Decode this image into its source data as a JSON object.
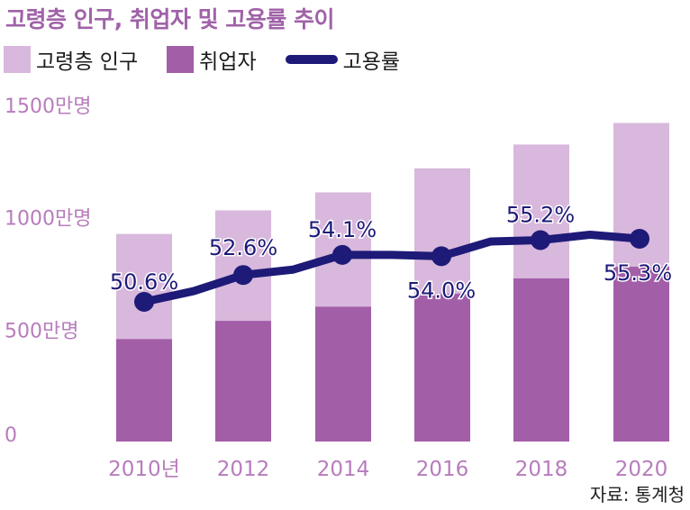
{
  "title": "고령층 인구, 취업자 및 고용률 추이",
  "legend": [
    {
      "label": "고령층 인구",
      "color": "#d8b8dc"
    },
    {
      "label": "취업자",
      "color": "#a35ea8"
    },
    {
      "label": "고용률",
      "color": "#1e1a78"
    }
  ],
  "source": "자료: 통계청",
  "chart_data": {
    "type": "bar",
    "categories": [
      "2010년",
      "2012",
      "2014",
      "2016",
      "2018",
      "2020"
    ],
    "y_tick_labels": [
      "0",
      "500만명",
      "1000만명",
      "1500만명"
    ],
    "y_ticks": [
      0,
      500,
      1000,
      1500
    ],
    "ylim": [
      0,
      1500
    ],
    "stacked": false,
    "series": [
      {
        "name": "고령층 인구",
        "values": [
          924,
          1029,
          1109,
          1216,
          1322,
          1418
        ],
        "color": "#d8b8dc"
      },
      {
        "name": "취업자",
        "values": [
          456,
          537,
          600,
          658,
          726,
          778
        ],
        "color": "#a35ea8"
      }
    ],
    "line_series": {
      "name": "고용률",
      "color": "#1e1a78",
      "x_positions": [
        2010,
        2011,
        2012,
        2013,
        2014,
        2015,
        2016,
        2017,
        2018,
        2019,
        2020
      ],
      "values": [
        50.6,
        51.4,
        52.6,
        53.0,
        54.1,
        54.1,
        54.0,
        55.1,
        55.2,
        55.6,
        55.3
      ],
      "marker_labels": [
        {
          "year": 2010,
          "value": 50.6,
          "label": "50.6%"
        },
        {
          "year": 2012,
          "value": 52.6,
          "label": "52.6%"
        },
        {
          "year": 2014,
          "value": 54.1,
          "label": "54.1%"
        },
        {
          "year": 2016,
          "value": 54.0,
          "label": "54.0%"
        },
        {
          "year": 2018,
          "value": 55.2,
          "label": "55.2%"
        },
        {
          "year": 2020,
          "value": 55.3,
          "label": "55.3%"
        }
      ]
    }
  }
}
